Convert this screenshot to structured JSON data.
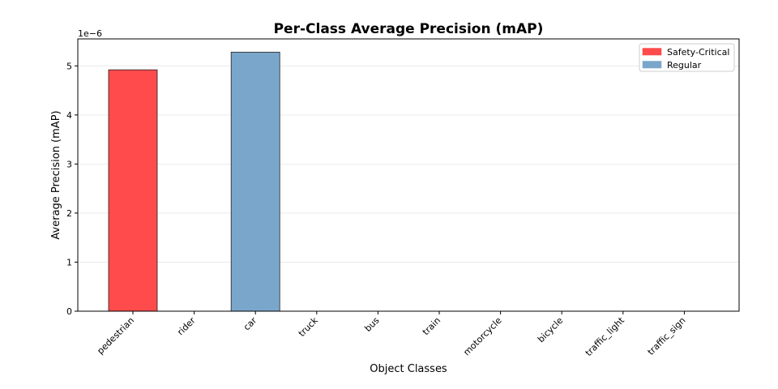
{
  "chart_data": {
    "type": "bar",
    "title": "Per-Class Average Precision (mAP)",
    "xlabel": "Object Classes",
    "ylabel": "Average Precision (mAP)",
    "y_scale_label": "1e−6",
    "ylim": [
      0,
      5.55
    ],
    "yticks": [
      "0",
      "1",
      "2",
      "3",
      "4",
      "5"
    ],
    "grid": "y-axis, light",
    "legend_position": "top-right",
    "categories": [
      "pedestrian",
      "rider",
      "car",
      "truck",
      "bus",
      "train",
      "motorcycle",
      "bicycle",
      "traffic_light",
      "traffic_sign"
    ],
    "values": [
      4.92,
      0,
      5.28,
      0,
      0,
      0,
      0,
      0,
      0,
      0
    ],
    "bar_group": [
      "safety",
      "safety",
      "regular",
      "regular",
      "regular",
      "regular",
      "safety",
      "safety",
      "regular",
      "regular"
    ],
    "legend": [
      {
        "key": "safety",
        "label": "Safety-Critical",
        "color": "#ff4b4b"
      },
      {
        "key": "regular",
        "label": "Regular",
        "color": "#7aa6cb"
      }
    ]
  }
}
